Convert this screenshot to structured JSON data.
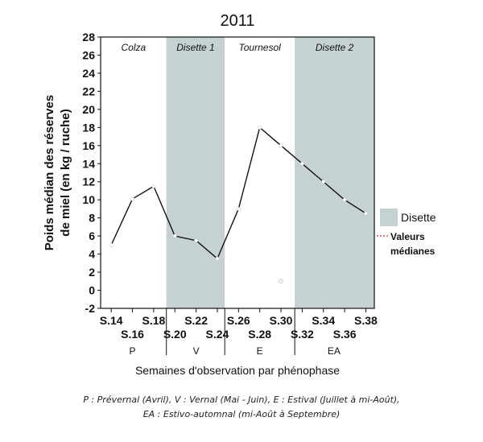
{
  "chart_data": {
    "type": "line",
    "title": "2011",
    "ylabel_lines": [
      "Poids médian des réserves",
      "de miel (en kg / ruche)"
    ],
    "xlabel": "Semaines d'observation par phénophase",
    "ylim": [
      -2,
      28
    ],
    "yticks": [
      -2,
      0,
      2,
      4,
      6,
      8,
      10,
      12,
      14,
      16,
      18,
      20,
      22,
      24,
      26,
      28
    ],
    "weeks_range": [
      14,
      38
    ],
    "series": [
      {
        "name": "Valeurs médianes",
        "color": "#111111",
        "marker_color": "#ffffff",
        "points": [
          {
            "week": 14,
            "value": 5.0
          },
          {
            "week": 16,
            "value": 10.1
          },
          {
            "week": 18,
            "value": 11.5
          },
          {
            "week": 20,
            "value": 6.0
          },
          {
            "week": 22,
            "value": 5.5
          },
          {
            "week": 24,
            "value": 3.5
          },
          {
            "week": 26,
            "value": 9.0
          },
          {
            "week": 28,
            "value": 18.0
          },
          {
            "week": 30,
            "value": 16.0
          },
          {
            "week": 32,
            "value": 14.0
          },
          {
            "week": 34,
            "value": 12.0
          },
          {
            "week": 36,
            "value": 10.0
          },
          {
            "week": 38,
            "value": 8.5
          }
        ]
      }
    ],
    "extra_point": {
      "week": 30,
      "value": 1.0
    },
    "periods": [
      {
        "label": "Colza",
        "from": 13,
        "to": 19.2,
        "shaded": false
      },
      {
        "label": "Disette 1",
        "from": 19.2,
        "to": 24.7,
        "shaded": true
      },
      {
        "label": "Tournesol",
        "from": 24.7,
        "to": 31.3,
        "shaded": false
      },
      {
        "label": "Disette 2",
        "from": 31.3,
        "to": 38.8,
        "shaded": true
      }
    ],
    "shade_color": "#c6d2d1",
    "tick_labels_row1": [
      {
        "label": "S.14",
        "week": 14
      },
      {
        "label": "S.18",
        "week": 18
      },
      {
        "label": "S.22",
        "week": 22
      },
      {
        "label": "S.26",
        "week": 26
      },
      {
        "label": "S.30",
        "week": 30
      },
      {
        "label": "S.34",
        "week": 34
      },
      {
        "label": "S.38",
        "week": 38
      }
    ],
    "tick_labels_row2": [
      {
        "label": "S.16",
        "week": 16
      },
      {
        "label": "S.20",
        "week": 20
      },
      {
        "label": "S.24",
        "week": 24
      },
      {
        "label": "S.28",
        "week": 28
      },
      {
        "label": "S.32",
        "week": 32
      },
      {
        "label": "S.36",
        "week": 36
      }
    ],
    "phenophase_boundaries": [
      19.2,
      24.7,
      31.3
    ],
    "phenophases": [
      {
        "label": "P",
        "week": 16
      },
      {
        "label": "V",
        "week": 22
      },
      {
        "label": "E",
        "week": 28
      },
      {
        "label": "EA",
        "week": 35
      }
    ],
    "legend": [
      {
        "label": "Disette",
        "kind": "box"
      },
      {
        "label_lines": [
          "Valeurs",
          "médianes"
        ],
        "kind": "line"
      }
    ]
  },
  "caption_lines": [
    "P : Prévernal (Avril), V : Vernal (Mai - Juin), E : Estival (Juillet à mi-Août),",
    "EA : Estivo-automnal (mi-Août à Septembre)"
  ]
}
